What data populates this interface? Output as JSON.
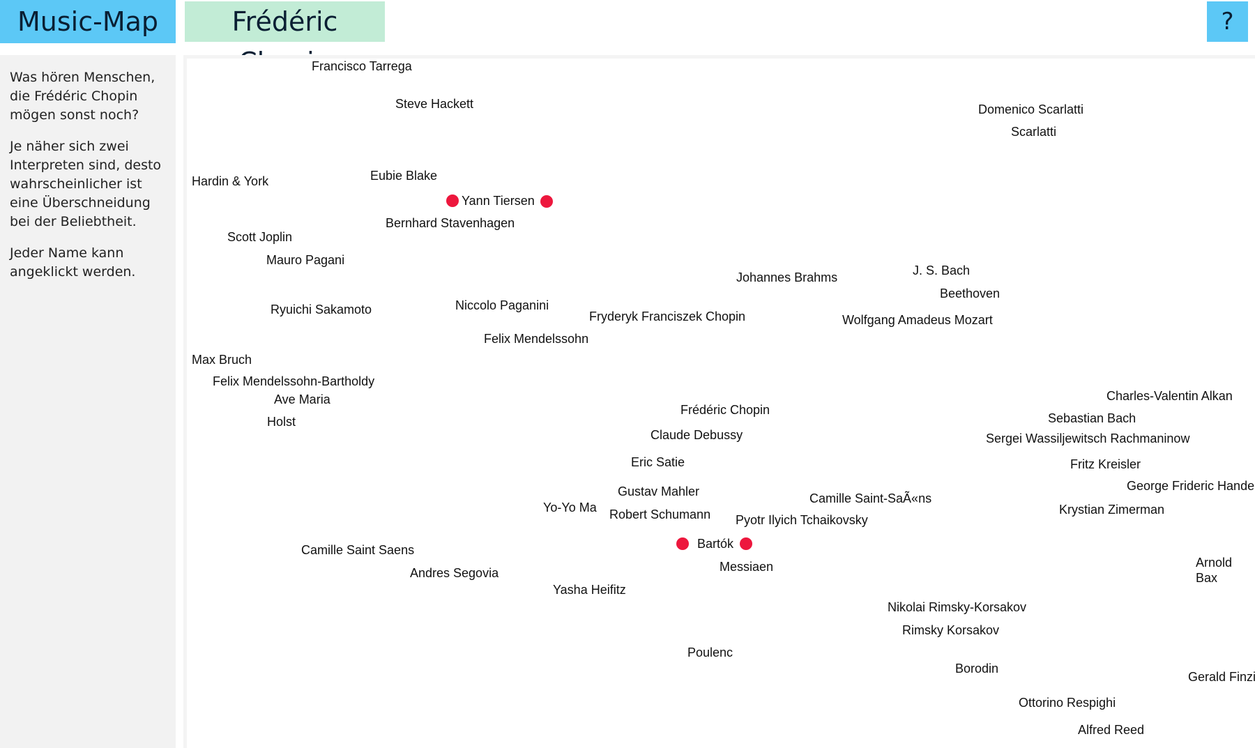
{
  "header": {
    "logo": "Music-Map",
    "artist_title": "Frédéric Chopin",
    "help_label": "?"
  },
  "sidebar": {
    "paragraphs": [
      "Was hören Menschen, die Frédéric Chopin mögen sonst noch?",
      "Je näher sich zwei Interpreten sind, desto wahrscheinlicher ist eine Überschneidung bei der Beliebtheit.",
      "Jeder Name kann angeklickt werden."
    ]
  },
  "artists": [
    "Francisco Tarrega",
    "Steve Hackett",
    "Domenico Scarlatti",
    "Scarlatti",
    "Hardin & York",
    "Eubie Blake",
    "Yann Tiersen",
    "Bernhard Stavenhagen",
    "Scott Joplin",
    "Mauro Pagani",
    "Johannes Brahms",
    "J. S. Bach",
    "Beethoven",
    "Ryuichi Sakamoto",
    "Niccolo Paganini",
    "Fryderyk Franciszek Chopin",
    "Wolfgang Amadeus Mozart",
    "Felix Mendelssohn",
    "Max Bruch",
    "Felix Mendelssohn-Bartholdy",
    "Ave Maria",
    "Holst",
    "Charles-Valentin Alkan",
    "Frédéric Chopin",
    "Sebastian Bach",
    "Claude Debussy",
    "Sergei Wassiljewitsch Rachmaninow",
    "Eric Satie",
    "Fritz Kreisler",
    "George Frideric Handel",
    "Gustav Mahler",
    "Camille Saint-SaÃ«ns",
    "Yo-Yo Ma",
    "Robert Schumann",
    "Krystian Zimerman",
    "Pyotr Ilyich Tchaikovsky",
    "Bartók",
    "Camille Saint Saens",
    "Arnold Bax",
    "Messiaen",
    "Andres Segovia",
    "Yasha Heifitz",
    "Nikolai Rimsky-Korsakov",
    "Rimsky Korsakov",
    "Poulenc",
    "Borodin",
    "Gerald Finzi",
    "Ottorino Respighi",
    "Alfred Reed"
  ],
  "colors": {
    "logo_bg": "#5cc8f6",
    "title_bg": "#c2ecd6",
    "dot": "#ed173d",
    "sidebar_bg": "#f2f2f2"
  }
}
